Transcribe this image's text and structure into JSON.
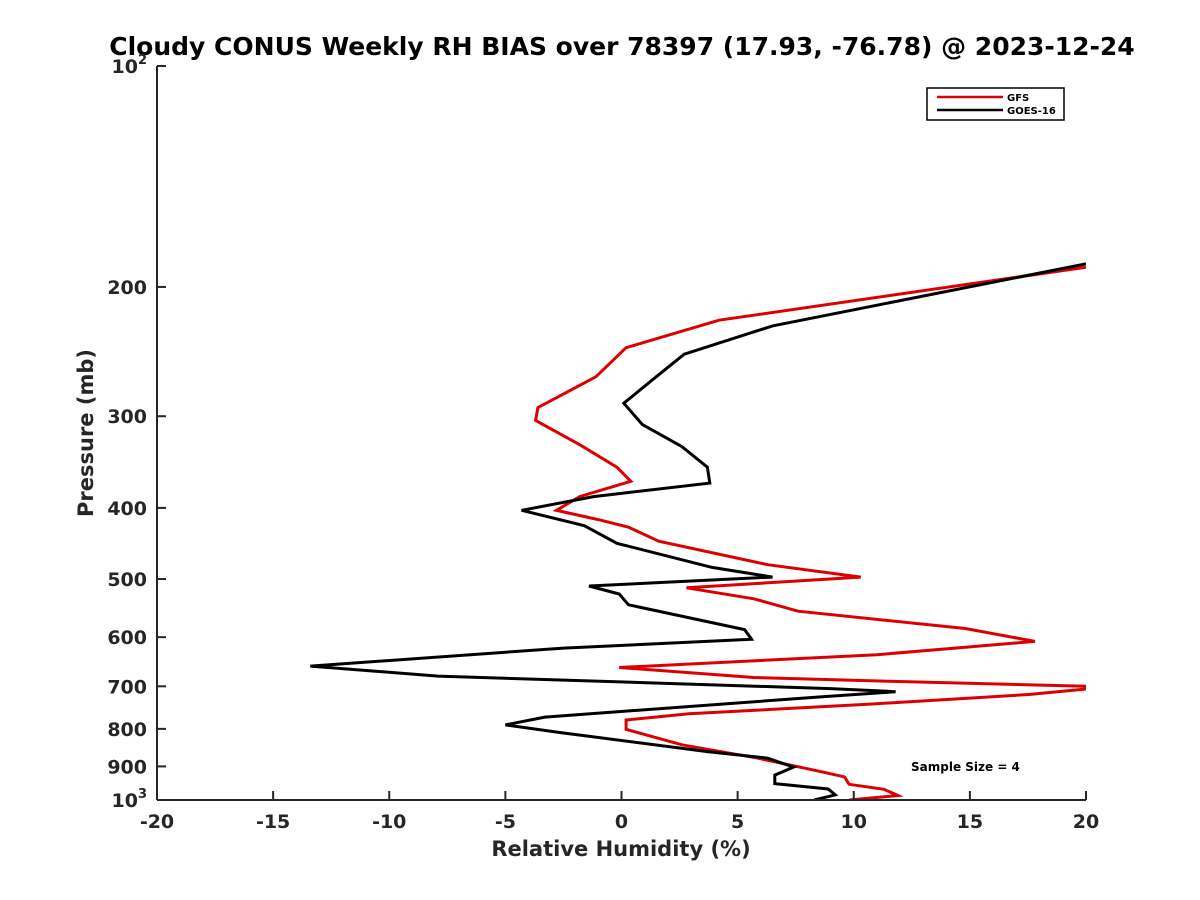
{
  "chart_data": {
    "type": "line",
    "title": "Cloudy CONUS Weekly RH BIAS over 78397 (17.93, -76.78) @ 2023-12-24",
    "xlabel": "Relative Humidity (%)",
    "ylabel": "Pressure (mb)",
    "xlim": [
      -20,
      20
    ],
    "ylim": [
      100,
      1000
    ],
    "y_scale": "log",
    "y_reversed": true,
    "x_ticks": [
      "-20",
      "-15",
      "-10",
      "-5",
      "0",
      "5",
      "10",
      "15",
      "20"
    ],
    "y_ticks": [
      {
        "value": 100,
        "base": "10",
        "exp": "2"
      },
      {
        "value": 200,
        "label": "200"
      },
      {
        "value": 300,
        "label": "300"
      },
      {
        "value": 400,
        "label": "400"
      },
      {
        "value": 500,
        "label": "500"
      },
      {
        "value": 600,
        "label": "600"
      },
      {
        "value": 700,
        "label": "700"
      },
      {
        "value": 800,
        "label": "800"
      },
      {
        "value": 900,
        "label": "900"
      },
      {
        "value": 1000,
        "base": "10",
        "exp": "3"
      }
    ],
    "grid": false,
    "legend_position": "top-right",
    "annotation": "Sample Size = 4",
    "series": [
      {
        "name": "GFS",
        "color": "#dd0000",
        "points": [
          [
            20.0,
            188
          ],
          [
            4.2,
            222
          ],
          [
            0.2,
            242
          ],
          [
            -1.1,
            265
          ],
          [
            -3.6,
            292
          ],
          [
            -3.7,
            304
          ],
          [
            -1.8,
            328
          ],
          [
            -0.2,
            352
          ],
          [
            0.4,
            368
          ],
          [
            -1.8,
            386
          ],
          [
            -2.8,
            403
          ],
          [
            -1.0,
            415
          ],
          [
            0.3,
            425
          ],
          [
            1.6,
            444
          ],
          [
            6.3,
            478
          ],
          [
            10.3,
            497
          ],
          [
            2.8,
            514
          ],
          [
            5.7,
            532
          ],
          [
            7.6,
            553
          ],
          [
            14.8,
            584
          ],
          [
            17.8,
            608
          ],
          [
            11.0,
            634
          ],
          [
            -0.1,
            660
          ],
          [
            5.7,
            681
          ],
          [
            11.5,
            689
          ],
          [
            20.0,
            700
          ],
          [
            20.0,
            706
          ],
          [
            17.6,
            718
          ],
          [
            10.8,
            740
          ],
          [
            2.9,
            763
          ],
          [
            0.2,
            778
          ],
          [
            0.2,
            801
          ],
          [
            2.6,
            841
          ],
          [
            5.8,
            876
          ],
          [
            8.6,
            915
          ],
          [
            9.6,
            930
          ],
          [
            9.8,
            952
          ],
          [
            11.3,
            967
          ],
          [
            11.9,
            986
          ],
          [
            9.8,
            1000
          ]
        ]
      },
      {
        "name": "GOES-16",
        "color": "#000000",
        "points": [
          [
            20.0,
            186
          ],
          [
            6.5,
            226
          ],
          [
            2.7,
            247
          ],
          [
            1.5,
            265
          ],
          [
            0.1,
            288
          ],
          [
            0.9,
            308
          ],
          [
            2.6,
            330
          ],
          [
            3.7,
            352
          ],
          [
            3.8,
            370
          ],
          [
            -1.2,
            386
          ],
          [
            -4.3,
            403
          ],
          [
            -1.6,
            423
          ],
          [
            -0.2,
            447
          ],
          [
            3.9,
            482
          ],
          [
            6.5,
            497
          ],
          [
            -1.4,
            511
          ],
          [
            -0.1,
            524
          ],
          [
            0.3,
            542
          ],
          [
            5.3,
            586
          ],
          [
            5.6,
            604
          ],
          [
            -2.5,
            621
          ],
          [
            -13.4,
            657
          ],
          [
            -7.9,
            678
          ],
          [
            9.0,
            705
          ],
          [
            11.8,
            712
          ],
          [
            8.5,
            724
          ],
          [
            -3.3,
            771
          ],
          [
            -5.0,
            790
          ],
          [
            -2.7,
            809
          ],
          [
            3.7,
            859
          ],
          [
            6.3,
            877
          ],
          [
            7.4,
            902
          ],
          [
            6.6,
            925
          ],
          [
            6.6,
            950
          ],
          [
            8.9,
            966
          ],
          [
            9.2,
            984
          ],
          [
            8.3,
            1000
          ]
        ]
      }
    ]
  }
}
